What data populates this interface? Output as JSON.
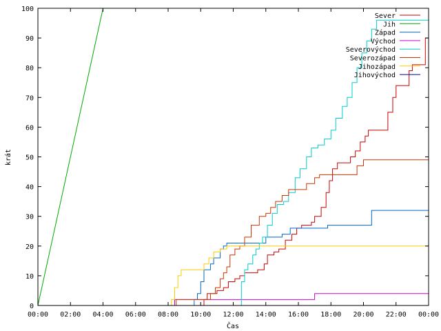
{
  "chart_data": {
    "type": "line",
    "xlabel": "Čas",
    "ylabel": "krát",
    "xlim": [
      0,
      24
    ],
    "ylim": [
      0,
      100
    ],
    "x_ticks": [
      {
        "value": 0,
        "label": "00:00"
      },
      {
        "value": 2,
        "label": "02:00"
      },
      {
        "value": 4,
        "label": "04:00"
      },
      {
        "value": 6,
        "label": "06:00"
      },
      {
        "value": 8,
        "label": "08:00"
      },
      {
        "value": 10,
        "label": "10:00"
      },
      {
        "value": 12,
        "label": "12:00"
      },
      {
        "value": 14,
        "label": "14:00"
      },
      {
        "value": 16,
        "label": "16:00"
      },
      {
        "value": 18,
        "label": "18:00"
      },
      {
        "value": 20,
        "label": "20:00"
      },
      {
        "value": 22,
        "label": "22:00"
      },
      {
        "value": 24,
        "label": "00:00"
      }
    ],
    "y_ticks": [
      {
        "value": 0,
        "label": "0"
      },
      {
        "value": 10,
        "label": "10"
      },
      {
        "value": 20,
        "label": "20"
      },
      {
        "value": 30,
        "label": "30"
      },
      {
        "value": 40,
        "label": "40"
      },
      {
        "value": 50,
        "label": "50"
      },
      {
        "value": 60,
        "label": "60"
      },
      {
        "value": 70,
        "label": "70"
      },
      {
        "value": 80,
        "label": "80"
      },
      {
        "value": 90,
        "label": "90"
      },
      {
        "value": 100,
        "label": "100"
      }
    ],
    "legend_position": "top-right",
    "grid": false,
    "series": [
      {
        "name": "Sever",
        "color": "#cc0000",
        "step": true,
        "points": [
          [
            0,
            0
          ],
          [
            10.1,
            0
          ],
          [
            10.2,
            2
          ],
          [
            10.4,
            4
          ],
          [
            11.0,
            5
          ],
          [
            11.4,
            6
          ],
          [
            11.7,
            8
          ],
          [
            12.1,
            9
          ],
          [
            12.4,
            10
          ],
          [
            12.7,
            11
          ],
          [
            13.2,
            11
          ],
          [
            13.5,
            12
          ],
          [
            13.9,
            14
          ],
          [
            14.1,
            17
          ],
          [
            14.5,
            18
          ],
          [
            14.8,
            19
          ],
          [
            15.2,
            22
          ],
          [
            15.6,
            24
          ],
          [
            15.9,
            26
          ],
          [
            16.2,
            27
          ],
          [
            16.8,
            28
          ],
          [
            17.0,
            30
          ],
          [
            17.4,
            33
          ],
          [
            17.7,
            38
          ],
          [
            17.9,
            42
          ],
          [
            18.1,
            46
          ],
          [
            18.4,
            48
          ],
          [
            19.0,
            48
          ],
          [
            19.2,
            50
          ],
          [
            19.5,
            52
          ],
          [
            19.8,
            55
          ],
          [
            20.1,
            57
          ],
          [
            20.3,
            59
          ],
          [
            21.2,
            59
          ],
          [
            21.5,
            65
          ],
          [
            21.8,
            70
          ],
          [
            22.0,
            74
          ],
          [
            22.6,
            74
          ],
          [
            22.8,
            79
          ],
          [
            23.0,
            81
          ],
          [
            23.6,
            81
          ],
          [
            23.8,
            90
          ],
          [
            24.0,
            100
          ]
        ]
      },
      {
        "name": "Jih",
        "color": "#00aa00",
        "step": false,
        "points": [
          [
            0,
            0
          ],
          [
            4.0,
            100
          ]
        ]
      },
      {
        "name": "Západ",
        "color": "#0066cc",
        "step": true,
        "points": [
          [
            0,
            0
          ],
          [
            9.5,
            0
          ],
          [
            9.6,
            2
          ],
          [
            9.8,
            4
          ],
          [
            10.0,
            8
          ],
          [
            10.2,
            12
          ],
          [
            10.6,
            14
          ],
          [
            10.8,
            16
          ],
          [
            11.2,
            19
          ],
          [
            11.4,
            20
          ],
          [
            11.6,
            21
          ],
          [
            13.8,
            21
          ],
          [
            14.0,
            23
          ],
          [
            14.8,
            23
          ],
          [
            15.0,
            24
          ],
          [
            15.5,
            26
          ],
          [
            17.6,
            26
          ],
          [
            17.8,
            27
          ],
          [
            20.3,
            27
          ],
          [
            20.5,
            32
          ],
          [
            24.0,
            32
          ]
        ]
      },
      {
        "name": "Východ",
        "color": "#cc00cc",
        "step": true,
        "points": [
          [
            0,
            0
          ],
          [
            8.2,
            0
          ],
          [
            8.4,
            2
          ],
          [
            16.9,
            2
          ],
          [
            17.0,
            4
          ],
          [
            24.0,
            4
          ]
        ]
      },
      {
        "name": "Severovýchod",
        "color": "#00cccc",
        "step": true,
        "points": [
          [
            0,
            0
          ],
          [
            12.3,
            0
          ],
          [
            12.5,
            8
          ],
          [
            12.7,
            12
          ],
          [
            12.9,
            14
          ],
          [
            13.2,
            17
          ],
          [
            13.4,
            19
          ],
          [
            13.6,
            21
          ],
          [
            13.8,
            23
          ],
          [
            14.1,
            27
          ],
          [
            14.4,
            31
          ],
          [
            14.7,
            34
          ],
          [
            15.1,
            35
          ],
          [
            15.4,
            38
          ],
          [
            15.8,
            43
          ],
          [
            16.1,
            46
          ],
          [
            16.5,
            50
          ],
          [
            16.8,
            53
          ],
          [
            17.2,
            54
          ],
          [
            17.6,
            56
          ],
          [
            18.0,
            59
          ],
          [
            18.3,
            63
          ],
          [
            18.7,
            67
          ],
          [
            19.0,
            70
          ],
          [
            19.3,
            75
          ],
          [
            19.6,
            80
          ],
          [
            19.9,
            85
          ],
          [
            20.2,
            89
          ],
          [
            20.5,
            93
          ],
          [
            20.8,
            96
          ],
          [
            24.0,
            96
          ]
        ]
      },
      {
        "name": "Severozápad",
        "color": "#cc3300",
        "step": true,
        "points": [
          [
            0,
            0
          ],
          [
            8.3,
            0
          ],
          [
            8.5,
            2
          ],
          [
            10.3,
            2
          ],
          [
            10.6,
            4
          ],
          [
            10.9,
            6
          ],
          [
            11.2,
            9
          ],
          [
            11.4,
            11
          ],
          [
            11.6,
            13
          ],
          [
            11.8,
            17
          ],
          [
            12.1,
            19
          ],
          [
            12.4,
            20
          ],
          [
            12.7,
            23
          ],
          [
            13.1,
            27
          ],
          [
            13.6,
            30
          ],
          [
            14.0,
            31
          ],
          [
            14.3,
            33
          ],
          [
            14.6,
            35
          ],
          [
            15.0,
            37
          ],
          [
            15.4,
            39
          ],
          [
            16.3,
            39
          ],
          [
            16.5,
            41
          ],
          [
            17.0,
            43
          ],
          [
            17.3,
            44
          ],
          [
            19.4,
            44
          ],
          [
            19.6,
            47
          ],
          [
            20.0,
            49
          ],
          [
            24.0,
            49
          ]
        ]
      },
      {
        "name": "Jihozápad",
        "color": "#ffcc00",
        "step": true,
        "points": [
          [
            0,
            0
          ],
          [
            8.0,
            0
          ],
          [
            8.2,
            2
          ],
          [
            8.4,
            6
          ],
          [
            8.6,
            10
          ],
          [
            8.8,
            12
          ],
          [
            10.0,
            12
          ],
          [
            10.2,
            14
          ],
          [
            10.5,
            16
          ],
          [
            10.8,
            18
          ],
          [
            11.2,
            19
          ],
          [
            11.6,
            20
          ],
          [
            24.0,
            20
          ]
        ]
      },
      {
        "name": "Jihovýchod",
        "color": "#0000aa",
        "step": true,
        "points": [
          [
            0,
            0
          ],
          [
            24.0,
            0
          ]
        ]
      }
    ]
  }
}
